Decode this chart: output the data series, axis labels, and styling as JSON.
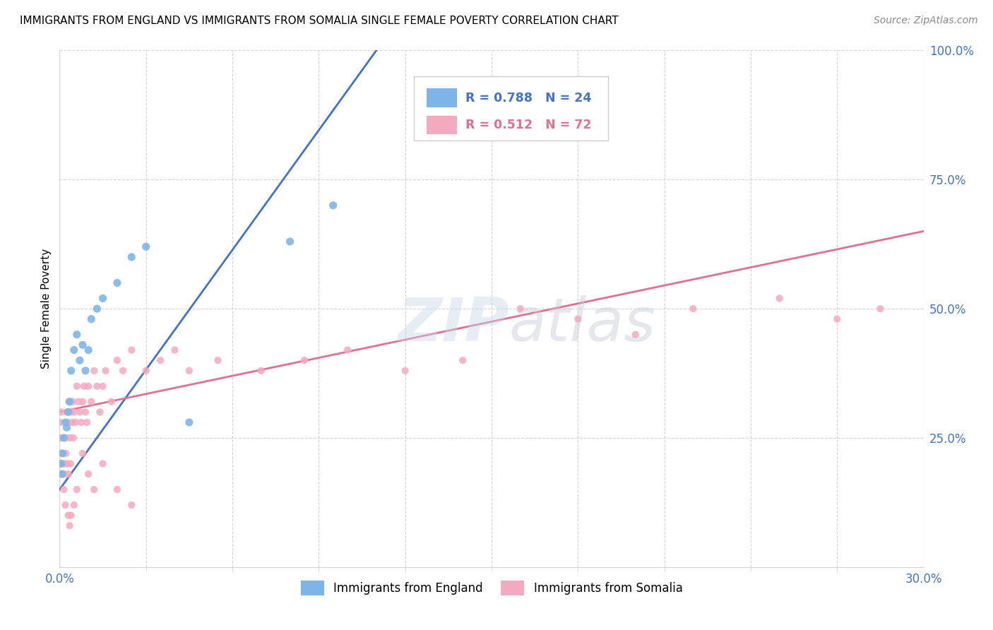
{
  "title": "IMMIGRANTS FROM ENGLAND VS IMMIGRANTS FROM SOMALIA SINGLE FEMALE POVERTY CORRELATION CHART",
  "source": "Source: ZipAtlas.com",
  "ylabel": "Single Female Poverty",
  "xlim": [
    0.0,
    30.0
  ],
  "ylim": [
    0.0,
    100.0
  ],
  "england_color": "#7EB5E8",
  "england_line_color": "#4472C4",
  "somalia_color": "#F4AABE",
  "somalia_line_color": "#E07090",
  "england_R": 0.788,
  "england_N": 24,
  "somalia_R": 0.512,
  "somalia_N": 72,
  "eng_x": [
    0.05,
    0.08,
    0.1,
    0.15,
    0.2,
    0.25,
    0.3,
    0.35,
    0.4,
    0.5,
    0.6,
    0.7,
    0.8,
    0.9,
    1.0,
    1.1,
    1.3,
    1.5,
    2.0,
    2.5,
    3.0,
    4.5,
    8.0,
    9.5
  ],
  "eng_y": [
    20,
    18,
    22,
    25,
    28,
    27,
    30,
    32,
    38,
    42,
    45,
    40,
    43,
    38,
    42,
    48,
    50,
    52,
    55,
    60,
    62,
    28,
    63,
    70
  ],
  "som_x": [
    0.02,
    0.04,
    0.06,
    0.08,
    0.1,
    0.12,
    0.15,
    0.18,
    0.2,
    0.22,
    0.25,
    0.28,
    0.3,
    0.32,
    0.35,
    0.38,
    0.4,
    0.43,
    0.45,
    0.48,
    0.5,
    0.55,
    0.6,
    0.65,
    0.7,
    0.75,
    0.8,
    0.85,
    0.9,
    0.95,
    1.0,
    1.1,
    1.2,
    1.3,
    1.4,
    1.5,
    1.6,
    1.8,
    2.0,
    2.2,
    2.5,
    3.0,
    3.5,
    4.0,
    4.5,
    5.5,
    7.0,
    8.5,
    10.0,
    12.0,
    14.0,
    16.0,
    18.0,
    20.0,
    22.0,
    25.0,
    27.0,
    28.5,
    2.0,
    2.5,
    0.3,
    0.5,
    0.6,
    0.4,
    0.35,
    0.2,
    0.15,
    0.25,
    0.8,
    1.0,
    1.2,
    1.5
  ],
  "som_y": [
    28,
    25,
    30,
    22,
    20,
    18,
    15,
    20,
    25,
    22,
    30,
    28,
    18,
    32,
    25,
    20,
    30,
    28,
    32,
    25,
    30,
    28,
    35,
    32,
    30,
    28,
    32,
    35,
    30,
    28,
    35,
    32,
    38,
    35,
    30,
    35,
    38,
    32,
    40,
    38,
    42,
    38,
    40,
    42,
    38,
    40,
    38,
    40,
    42,
    38,
    40,
    50,
    48,
    45,
    50,
    52,
    48,
    50,
    15,
    12,
    10,
    12,
    15,
    10,
    8,
    12,
    18,
    20,
    22,
    18,
    15,
    20
  ],
  "eng_line_x0": 0.0,
  "eng_line_y0": 15.0,
  "eng_line_x1": 11.0,
  "eng_line_y1": 100.0,
  "som_line_x0": 0.0,
  "som_line_y0": 30.0,
  "som_line_x1": 30.0,
  "som_line_y1": 65.0
}
